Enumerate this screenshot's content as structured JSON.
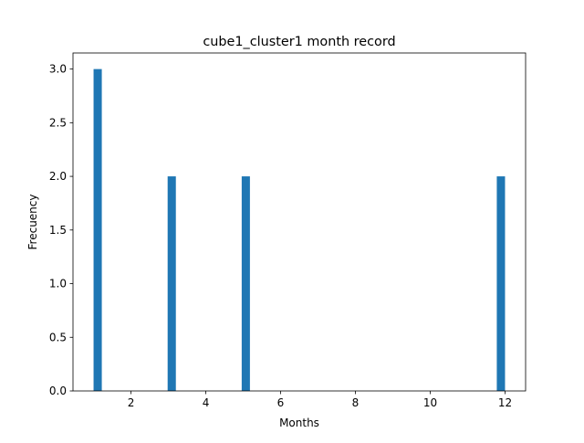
{
  "chart_data": {
    "type": "bar",
    "title": "cube1_cluster1 month record",
    "xlabel": "Months",
    "ylabel": "Frecuency",
    "bars": [
      {
        "x_start": 1.0,
        "x_end": 1.22,
        "value": 3
      },
      {
        "x_start": 2.98,
        "x_end": 3.2,
        "value": 2
      },
      {
        "x_start": 4.96,
        "x_end": 5.18,
        "value": 2
      },
      {
        "x_start": 11.78,
        "x_end": 12.0,
        "value": 2
      }
    ],
    "xlim": [
      0.45,
      12.55
    ],
    "ylim": [
      0,
      3.15
    ],
    "x_ticks": [
      2,
      4,
      6,
      8,
      10,
      12
    ],
    "x_tick_labels": [
      "2",
      "4",
      "6",
      "8",
      "10",
      "12"
    ],
    "y_ticks": [
      0,
      0.5,
      1,
      1.5,
      2,
      2.5,
      3
    ],
    "y_tick_labels": [
      "0.0",
      "0.5",
      "1.0",
      "1.5",
      "2.0",
      "2.5",
      "3.0"
    ],
    "bar_color": "#1f77b4",
    "grid": false,
    "legend": false
  }
}
